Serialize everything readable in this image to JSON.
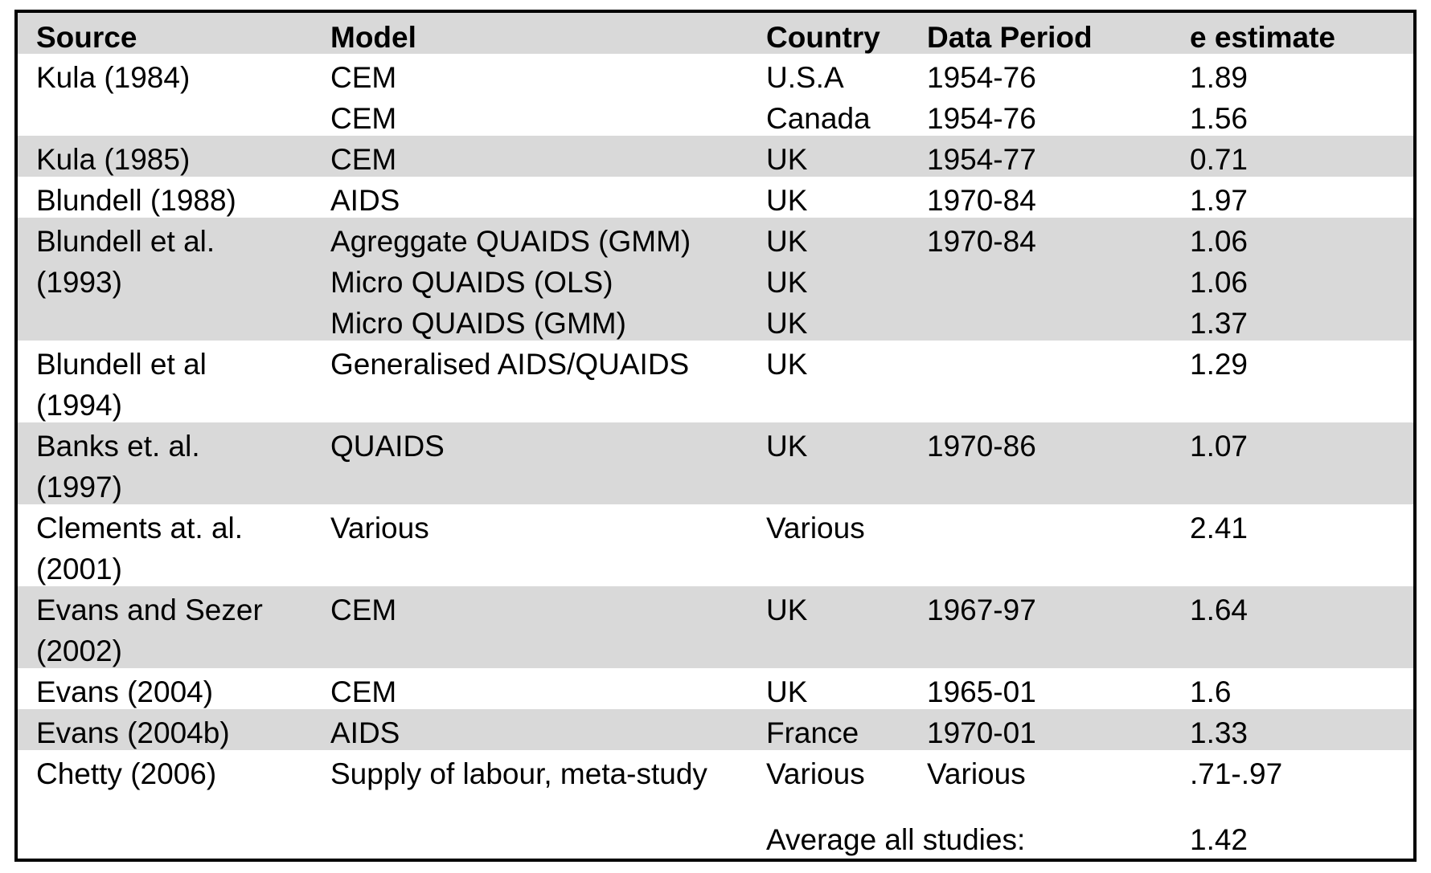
{
  "colors": {
    "shade": "#d9d9d9",
    "border": "#000000",
    "text": "#000000"
  },
  "header": {
    "source": "Source",
    "model": "Model",
    "country": "Country",
    "period": "Data Period",
    "estimate": "e estimate"
  },
  "rows": [
    {
      "source": [
        "Kula (1984)"
      ],
      "model": "CEM",
      "country": "U.S.A",
      "period": "1954-76",
      "estimate": "1.89"
    },
    {
      "source": [],
      "model": "CEM",
      "country": "Canada",
      "period": "1954-76",
      "estimate": "1.56"
    },
    {
      "source": [
        "Kula (1985)"
      ],
      "model": "CEM",
      "country": "UK",
      "period": "1954-77",
      "estimate": "0.71"
    },
    {
      "source": [
        "Blundell (1988)"
      ],
      "model": "AIDS",
      "country": "UK",
      "period": "1970-84",
      "estimate": "1.97"
    },
    {
      "source": [
        "Blundell et al.",
        "(1993)"
      ],
      "model": "Agreggate QUAIDS (GMM)",
      "country": "UK",
      "period": "1970-84",
      "estimate": "1.06"
    },
    {
      "source": [],
      "model": "Micro QUAIDS (OLS)",
      "country": "UK",
      "period": "",
      "estimate": "1.06"
    },
    {
      "source": [],
      "model": "Micro QUAIDS (GMM)",
      "country": "UK",
      "period": "",
      "estimate": "1.37"
    },
    {
      "source": [
        "Blundell et al",
        "(1994)"
      ],
      "model": "Generalised AIDS/QUAIDS",
      "country": "UK",
      "period": "",
      "estimate": "1.29"
    },
    {
      "source": [
        "Banks et. al.",
        "(1997)"
      ],
      "model": "QUAIDS",
      "country": "UK",
      "period": "1970-86",
      "estimate": "1.07"
    },
    {
      "source": [
        "Clements at. al.",
        "(2001)"
      ],
      "model": "Various",
      "country": "Various",
      "period": "",
      "estimate": "2.41"
    },
    {
      "source": [
        "Evans and Sezer",
        "(2002)"
      ],
      "model": "CEM",
      "country": "UK",
      "period": "1967-97",
      "estimate": "1.64"
    },
    {
      "source": [
        "Evans (2004)"
      ],
      "model": "CEM",
      "country": "UK",
      "period": "1965-01",
      "estimate": "1.6"
    },
    {
      "source": [
        "Evans (2004b)"
      ],
      "model": "AIDS",
      "country": "France",
      "period": "1970-01",
      "estimate": "1.33"
    },
    {
      "source": [
        "Chetty (2006)"
      ],
      "model": "Supply of labour, meta-study",
      "country": "Various",
      "period": "Various",
      "estimate": ".71-.97"
    }
  ],
  "average": {
    "label": "Average all studies:",
    "value": "1.42"
  }
}
